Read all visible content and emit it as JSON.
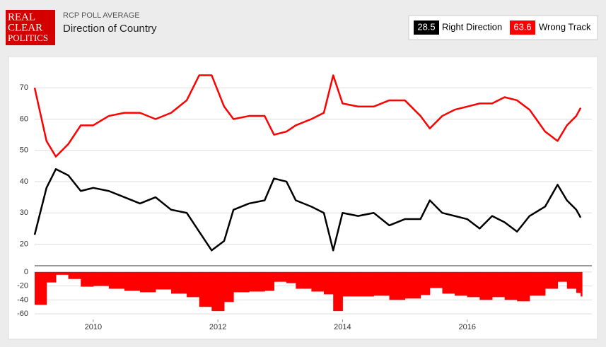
{
  "header": {
    "logo": [
      "REAL",
      "CLEAR",
      "POLITICS"
    ],
    "kicker": "RCP POLL AVERAGE",
    "title": "Direction of Country"
  },
  "chart_data": [
    {
      "type": "line",
      "x": [
        2009.06,
        2009.25,
        2009.4,
        2009.6,
        2009.8,
        2010.0,
        2010.25,
        2010.5,
        2010.75,
        2011.0,
        2011.25,
        2011.5,
        2011.7,
        2011.9,
        2012.1,
        2012.25,
        2012.5,
        2012.75,
        2012.9,
        2013.1,
        2013.25,
        2013.5,
        2013.7,
        2013.85,
        2014.0,
        2014.25,
        2014.5,
        2014.75,
        2015.0,
        2015.25,
        2015.4,
        2015.6,
        2015.8,
        2016.0,
        2016.2,
        2016.4,
        2016.6,
        2016.8,
        2017.0,
        2017.25,
        2017.45,
        2017.6,
        2017.75,
        2017.82
      ],
      "series": [
        {
          "name": "Right Direction",
          "latest": 28.5,
          "color": "#000000",
          "values": [
            23,
            38,
            44,
            42,
            37,
            38,
            37,
            35,
            33,
            35,
            31,
            30,
            24,
            18,
            21,
            31,
            33,
            34,
            41,
            40,
            34,
            32,
            30,
            18,
            30,
            29,
            30,
            26,
            28,
            28,
            34,
            30,
            29,
            28,
            25,
            29,
            27,
            24,
            29,
            32,
            39,
            34,
            31,
            28.5
          ]
        },
        {
          "name": "Wrong Track",
          "latest": 63.6,
          "color": "#ff0000",
          "values": [
            70,
            53,
            48,
            52,
            58,
            58,
            61,
            62,
            62,
            60,
            62,
            66,
            74,
            74,
            64,
            60,
            61,
            61,
            55,
            56,
            58,
            60,
            62,
            74,
            65,
            64,
            64,
            66,
            66,
            61,
            57,
            61,
            63,
            64,
            65,
            65,
            67,
            66,
            63,
            56,
            53,
            58,
            61,
            63.6
          ]
        }
      ],
      "xlim": [
        2009.06,
        2018.0
      ],
      "ylim": [
        14,
        80
      ],
      "yticks": [
        20,
        30,
        40,
        50,
        60,
        70
      ],
      "grid": true
    },
    {
      "type": "area",
      "color": "#ff0000",
      "x": [
        2009.06,
        2009.25,
        2009.4,
        2009.6,
        2009.8,
        2010.0,
        2010.25,
        2010.5,
        2010.75,
        2011.0,
        2011.25,
        2011.5,
        2011.7,
        2011.9,
        2012.1,
        2012.25,
        2012.5,
        2012.75,
        2012.9,
        2013.1,
        2013.25,
        2013.5,
        2013.7,
        2013.85,
        2014.0,
        2014.25,
        2014.5,
        2014.75,
        2015.0,
        2015.25,
        2015.4,
        2015.6,
        2015.8,
        2016.0,
        2016.2,
        2016.4,
        2016.6,
        2016.8,
        2017.0,
        2017.25,
        2017.45,
        2017.6,
        2017.75,
        2017.82
      ],
      "values": [
        -47,
        -15,
        -4,
        -10,
        -21,
        -20,
        -24,
        -27,
        -29,
        -25,
        -31,
        -36,
        -50,
        -56,
        -43,
        -29,
        -28,
        -27,
        -14,
        -16,
        -24,
        -28,
        -32,
        -56,
        -35,
        -35,
        -34,
        -40,
        -38,
        -33,
        -23,
        -31,
        -34,
        -36,
        -40,
        -36,
        -40,
        -42,
        -34,
        -24,
        -14,
        -24,
        -30,
        -35.1
      ],
      "xlim": [
        2009.06,
        2018.0
      ],
      "xticks": [
        2010,
        2012,
        2014,
        2016
      ],
      "ylim": [
        -68,
        10
      ],
      "yticks": [
        0,
        -20,
        -40,
        -60
      ],
      "grid": true
    }
  ]
}
